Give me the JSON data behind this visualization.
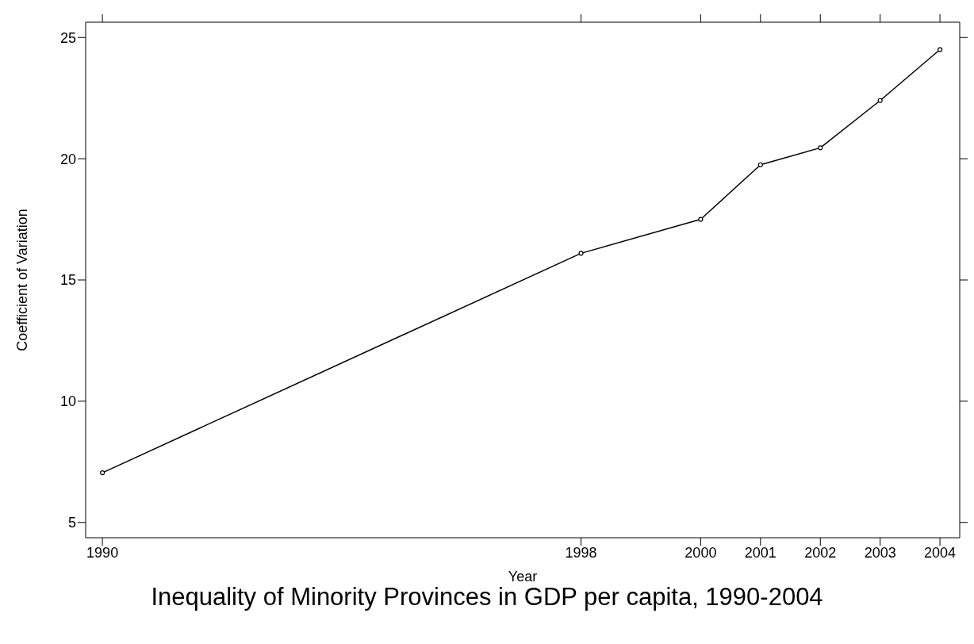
{
  "chart_data": {
    "type": "line",
    "title": "Inequality of Minority Provinces in GDP per capita, 1990-2004",
    "xlabel": "Year",
    "ylabel": "Coefficient of Variation",
    "x": [
      1990,
      1998,
      2000,
      2001,
      2002,
      2003,
      2004
    ],
    "series": [
      {
        "color": "#000000",
        "values": [
          7.05,
          16.1,
          17.5,
          19.75,
          20.45,
          22.4,
          24.5
        ]
      }
    ],
    "xlim": [
      1989.72,
      2004.33
    ],
    "xticks": [
      1990,
      1998,
      2000,
      2001,
      2002,
      2003,
      2004
    ],
    "ylim": [
      4.37,
      25.63
    ],
    "yticks": [
      5,
      10,
      15,
      20,
      25
    ],
    "marker": "circle",
    "line_style": "solid"
  }
}
